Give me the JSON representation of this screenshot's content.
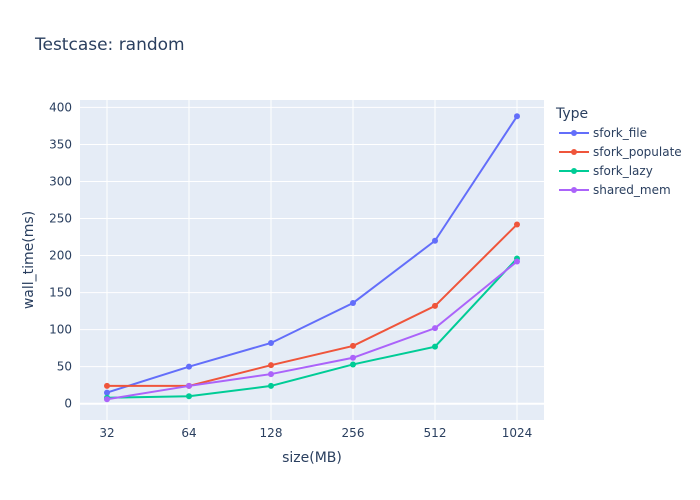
{
  "chart_data": {
    "type": "line",
    "title": "Testcase: random",
    "xlabel": "size(MB)",
    "ylabel": "wall_time(ms)",
    "x_scale": "log2",
    "categories": [
      32,
      64,
      128,
      256,
      512,
      1024
    ],
    "x_tick_labels": [
      "32",
      "64",
      "128",
      "256",
      "512",
      "1024"
    ],
    "ylim": [
      -22,
      410
    ],
    "y_ticks": [
      0,
      50,
      100,
      150,
      200,
      250,
      300,
      350,
      400
    ],
    "grid": true,
    "legend_title": "Type",
    "legend_position": "right",
    "series": [
      {
        "name": "sfork_file",
        "color": "#636efa",
        "values": [
          15,
          50,
          82,
          136,
          220,
          388
        ]
      },
      {
        "name": "sfork_populate",
        "color": "#ef553b",
        "values": [
          24,
          24,
          52,
          78,
          132,
          242
        ]
      },
      {
        "name": "sfork_lazy",
        "color": "#00cc96",
        "values": [
          8,
          10,
          24,
          53,
          77,
          196
        ]
      },
      {
        "name": "shared_mem",
        "color": "#ab63fa",
        "values": [
          6,
          24,
          40,
          62,
          102,
          192
        ]
      }
    ]
  }
}
